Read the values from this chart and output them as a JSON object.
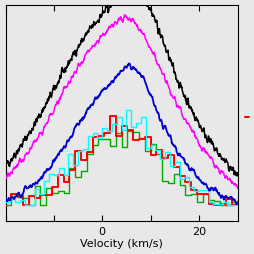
{
  "title": "",
  "xlabel": "Velocity (km/s)",
  "ylabel": "",
  "xlim": [
    -18,
    28
  ],
  "ylim": [
    -0.08,
    1.05
  ],
  "xtick_positions": [
    0,
    20
  ],
  "xtick_labels": [
    "0",
    "20"
  ],
  "background_color": "#e8e8e8",
  "line_colors": [
    "black",
    "magenta",
    "#0000cc",
    "cyan",
    "red",
    "#00aa00"
  ],
  "seed": 42,
  "peak_velocity": 3.5
}
